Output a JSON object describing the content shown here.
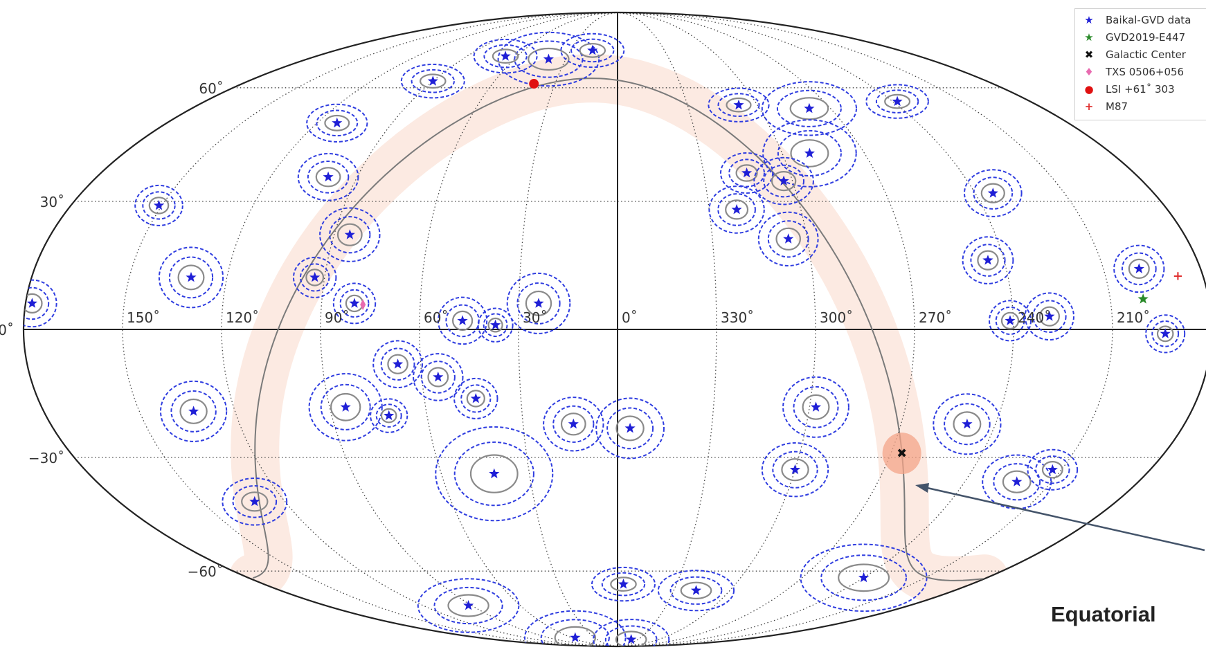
{
  "chart_data": {
    "type": "scatter",
    "projection": "mollweide",
    "frame_label": "Equatorial",
    "ra_tick_labels": [
      "150˚",
      "120˚",
      "90˚",
      "60˚",
      "30˚",
      "0˚",
      "330˚",
      "300˚",
      "270˚",
      "240˚",
      "210˚"
    ],
    "dec_tick_labels": [
      "60˚",
      "30˚",
      "0˚",
      "−30˚",
      "−60˚"
    ],
    "legend": [
      {
        "label": "Baikal-GVD data",
        "marker": "star",
        "color": "#1f1fd6"
      },
      {
        "label": "GVD2019-E447",
        "marker": "star",
        "color": "#2a8a2a"
      },
      {
        "label": "Galactic Center",
        "marker": "x",
        "color": "#111111"
      },
      {
        "label": "TXS 0506+056",
        "marker": "diamond",
        "color": "#e86bb0"
      },
      {
        "label": "LSI +61˚ 303",
        "marker": "circle",
        "color": "#e01010"
      },
      {
        "label": "M87",
        "marker": "plus",
        "color": "#e03030"
      }
    ],
    "series": [
      {
        "name": "Baikal-GVD data",
        "points": [
          {
            "ra": 178,
            "dec": 6,
            "err": 3.5
          },
          {
            "ra": 151,
            "dec": 29,
            "err": 3
          },
          {
            "ra": 131,
            "dec": 12,
            "err": 4.5
          },
          {
            "ra": 112,
            "dec": 50,
            "err": 2.8
          },
          {
            "ra": 100,
            "dec": 36,
            "err": 3.5
          },
          {
            "ra": 93,
            "dec": 12,
            "err": 3
          },
          {
            "ra": 85,
            "dec": 22,
            "err": 4
          },
          {
            "ra": 90,
            "dec": 62,
            "err": 2.5
          },
          {
            "ra": 80,
            "dec": 6,
            "err": 3
          },
          {
            "ra": 40,
            "dec": 69,
            "err": 4
          },
          {
            "ra": 67,
            "dec": 70,
            "err": 2.5
          },
          {
            "ra": 16,
            "dec": 72,
            "err": 2.5
          },
          {
            "ra": 24,
            "dec": 6,
            "err": 4.5
          },
          {
            "ra": 47,
            "dec": 2,
            "err": 3.5
          },
          {
            "ra": 37,
            "dec": 1,
            "err": 2.5
          },
          {
            "ra": 279,
            "dec": 54,
            "err": 4
          },
          {
            "ra": 308,
            "dec": 55,
            "err": 2.5
          },
          {
            "ra": 290,
            "dec": 42,
            "err": 5
          },
          {
            "ra": 315,
            "dec": 37,
            "err": 3
          },
          {
            "ra": 303,
            "dec": 35,
            "err": 3.5
          },
          {
            "ra": 321,
            "dec": 28,
            "err": 3.5
          },
          {
            "ra": 306,
            "dec": 21,
            "err": 4
          },
          {
            "ra": 238,
            "dec": 56,
            "err": 2.5
          },
          {
            "ra": 234,
            "dec": 32,
            "err": 3.5
          },
          {
            "ra": 245,
            "dec": 16,
            "err": 3.5
          },
          {
            "ra": 241,
            "dec": 2,
            "err": 3
          },
          {
            "ra": 229,
            "dec": 3,
            "err": 3.5
          },
          {
            "ra": 199,
            "dec": 14,
            "err": 3.5
          },
          {
            "ra": 194,
            "dec": -1,
            "err": 2.8
          },
          {
            "ra": 133,
            "dec": -19,
            "err": 4.5
          },
          {
            "ra": 85,
            "dec": -18,
            "err": 5
          },
          {
            "ra": 67,
            "dec": -8,
            "err": 3.5
          },
          {
            "ra": 55,
            "dec": -11,
            "err": 3.5
          },
          {
            "ra": 72,
            "dec": -20,
            "err": 2.5
          },
          {
            "ra": 44,
            "dec": -16,
            "err": 3
          },
          {
            "ra": 42,
            "dec": -34,
            "err": 7
          },
          {
            "ra": 14,
            "dec": -22,
            "err": 4
          },
          {
            "ra": 356,
            "dec": -23,
            "err": 4.5
          },
          {
            "ra": 298,
            "dec": -18,
            "err": 4.5
          },
          {
            "ra": 300,
            "dec": -33,
            "err": 4
          },
          {
            "ra": 249,
            "dec": -22,
            "err": 4.5
          },
          {
            "ra": 131,
            "dec": -41,
            "err": 3.5
          },
          {
            "ra": 222,
            "dec": -36,
            "err": 4
          },
          {
            "ra": 213,
            "dec": -33,
            "err": 3
          },
          {
            "ra": 357,
            "dec": -64,
            "err": 2.5
          },
          {
            "ra": 318,
            "dec": -66,
            "err": 3
          },
          {
            "ra": 240,
            "dec": -62,
            "err": 5
          },
          {
            "ra": 92,
            "dec": -71,
            "err": 4
          },
          {
            "ra": 55,
            "dec": -84,
            "err": 4
          },
          {
            "ra": 340,
            "dec": -85,
            "err": 3
          }
        ]
      },
      {
        "name": "GVD2019-E447",
        "points": [
          {
            "ra": 200,
            "dec": 7
          }
        ]
      },
      {
        "name": "Galactic Center",
        "points": [
          {
            "ra": 266.4,
            "dec": -29
          }
        ]
      },
      {
        "name": "TXS 0506+056",
        "points": [
          {
            "ra": 77.4,
            "dec": 5.7
          }
        ]
      },
      {
        "name": "LSI +61˚ 303",
        "points": [
          {
            "ra": 40.1,
            "dec": 61.2
          }
        ]
      },
      {
        "name": "M87",
        "points": [
          {
            "ra": 187.7,
            "dec": 12.4
          }
        ]
      }
    ],
    "galactic_plane": true,
    "grid": true,
    "legend_position": "top-right"
  }
}
